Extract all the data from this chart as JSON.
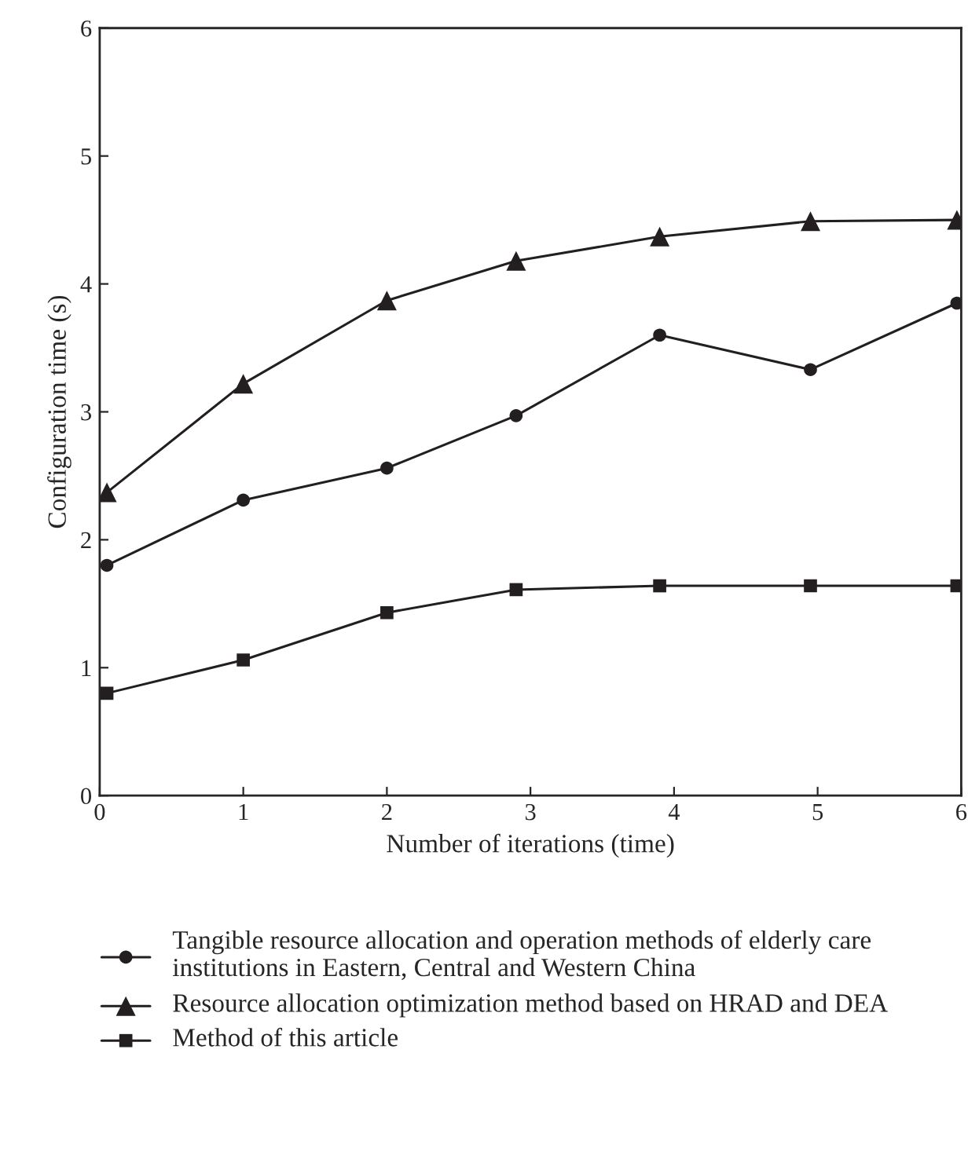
{
  "chart_data": {
    "type": "line",
    "xlabel": "Number of iterations (time)",
    "ylabel": "Configuration time (s)",
    "xlim": [
      0,
      6
    ],
    "xticks": [
      0,
      1,
      2,
      3,
      4,
      5,
      6
    ],
    "ylim": [
      0,
      6
    ],
    "yticks": [
      0,
      1,
      2,
      3,
      4,
      5,
      6
    ],
    "grid": false,
    "legend": "bottom",
    "series": [
      {
        "name": "Tangible resource allocation and operation methods of elderly care institutions in Eastern, Central and Western China",
        "color": "#231f20",
        "marker": "circle",
        "x": [
          0.05,
          1,
          2,
          2.9,
          3.9,
          4.95,
          5.97
        ],
        "values": [
          1.8,
          2.31,
          2.56,
          2.97,
          3.6,
          3.33,
          3.85
        ]
      },
      {
        "name": "Resource allocation optimization method based on HRAD and DEA",
        "color": "#231f20",
        "marker": "triangle",
        "x": [
          0.05,
          1,
          2,
          2.9,
          3.9,
          4.95,
          5.97
        ],
        "values": [
          2.37,
          3.22,
          3.87,
          4.18,
          4.37,
          4.49,
          4.5
        ]
      },
      {
        "name": "Method of this article",
        "color": "#231f20",
        "marker": "square",
        "x": [
          0.05,
          1,
          2,
          2.9,
          3.9,
          4.95,
          5.97
        ],
        "values": [
          0.8,
          1.06,
          1.43,
          1.61,
          1.64,
          1.64,
          1.64
        ]
      }
    ]
  }
}
